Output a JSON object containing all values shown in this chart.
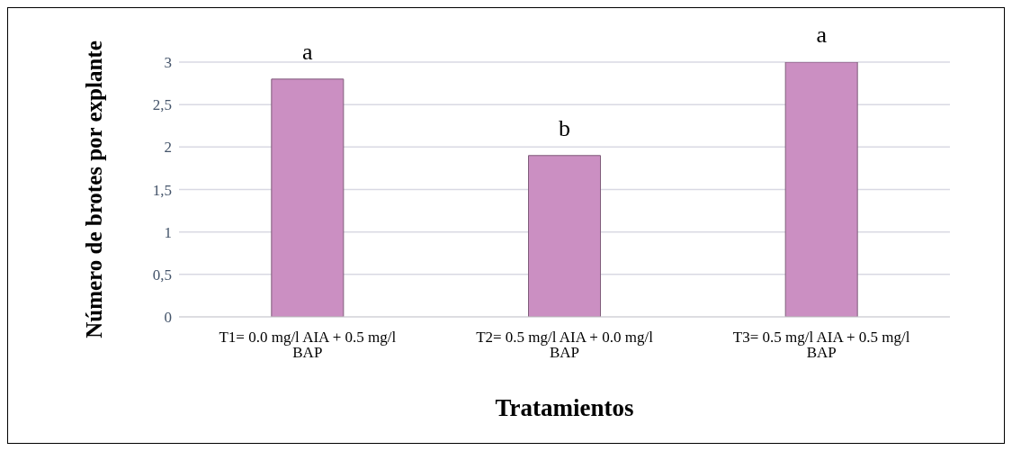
{
  "chart_data": {
    "type": "bar",
    "categories": [
      "T1= 0.0 mg/l AIA + 0.5 mg/l BAP",
      "T2= 0.5 mg/l AIA + 0.0 mg/l BAP",
      "T3= 0.5 mg/l AIA + 0.5 mg/l BAP"
    ],
    "values": [
      2.8,
      1.9,
      3.0
    ],
    "color": "#cb8fc2",
    "xlabel": "Tratamientos",
    "ylabel": "Número de brotes por explante",
    "ylim": [
      0,
      3
    ],
    "yticks": [
      0,
      {
        "value": 0.5,
        "label": "0,5"
      },
      1,
      {
        "value": 1.5,
        "label": "1,5"
      },
      2,
      {
        "value": 2.5,
        "label": "2,5"
      },
      3
    ],
    "grid": "y",
    "annotations": [
      {
        "text": "a",
        "x": "T1= 0.0 mg/l AIA + 0.5 mg/l BAP",
        "y": 2.8
      },
      {
        "text": "b",
        "x": "T2= 0.5 mg/l AIA + 0.0 mg/l BAP",
        "y": 1.9
      },
      {
        "text": "a",
        "x": "T3= 0.5 mg/l AIA + 0.5 mg/l BAP",
        "y": 3.0
      }
    ]
  }
}
